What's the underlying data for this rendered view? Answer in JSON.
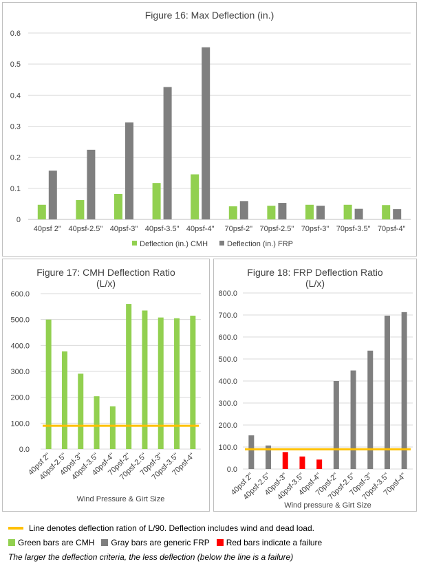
{
  "chart_data": [
    {
      "type": "bar",
      "title": "Figure 16: Max Deflection (in.)",
      "categories": [
        "40psf 2\"",
        "40psf-2.5\"",
        "40psf-3\"",
        "40psf-3.5\"",
        "40psf-4\"",
        "70psf-2\"",
        "70psf-2.5\"",
        "70psf-3\"",
        "70psf-3.5\"",
        "70psf-4\""
      ],
      "series": [
        {
          "name": "Deflection (in.) CMH",
          "color": "#92d050",
          "values": [
            0.047,
            0.062,
            0.082,
            0.117,
            0.145,
            0.042,
            0.044,
            0.047,
            0.047,
            0.046
          ]
        },
        {
          "name": "Deflection (in.) FRP",
          "color": "#7f7f7f",
          "values": [
            0.157,
            0.224,
            0.312,
            0.426,
            0.554,
            0.059,
            0.053,
            0.044,
            0.034,
            0.033
          ]
        }
      ],
      "ylim": [
        0,
        0.6
      ],
      "yticks": [
        "0",
        "0.1",
        "0.2",
        "0.3",
        "0.4",
        "0.5",
        "0.6"
      ],
      "grid": true,
      "legend": "bottom"
    },
    {
      "type": "bar",
      "title": "Figure 17: CMH Deflection Ratio",
      "subtitle": "(L/x)",
      "xlabel": "Wind Pressure & Girt Size",
      "categories": [
        "40psf 2\"",
        "40psf-2.5\"",
        "40psf-3\"",
        "40psf-3.5\"",
        "40psf-4\"",
        "70psf-2\"",
        "70psf-2.5\"",
        "70psf-3\"",
        "70psf-3.5\"",
        "70psf-4\""
      ],
      "values": [
        500,
        377,
        291,
        204,
        165,
        560,
        535,
        508,
        505,
        515
      ],
      "bar_colors": [
        "#92d050",
        "#92d050",
        "#92d050",
        "#92d050",
        "#92d050",
        "#92d050",
        "#92d050",
        "#92d050",
        "#92d050",
        "#92d050"
      ],
      "threshold": 90,
      "threshold_color": "#ffc000",
      "ylim": [
        0,
        600
      ],
      "yticks": [
        "0.0",
        "100.0",
        "200.0",
        "300.0",
        "400.0",
        "500.0",
        "600.0"
      ],
      "grid": true
    },
    {
      "type": "bar",
      "title": "Figure 18: FRP Deflection Ratio",
      "subtitle": "(L/x)",
      "xlabel": "Wind pressure & Girt Size",
      "categories": [
        "40psf 2\"",
        "40psf-2.5\"",
        "40psf-3\"",
        "40psf-3.5\"",
        "40psf-4\"",
        "70psf-2\"",
        "70psf-2.5\"",
        "70psf-3\"",
        "70psf-3.5\"",
        "70psf-4\""
      ],
      "values": [
        153,
        107,
        77,
        57,
        43,
        400,
        448,
        538,
        697,
        713
      ],
      "bar_colors": [
        "#7f7f7f",
        "#7f7f7f",
        "#ff0000",
        "#ff0000",
        "#ff0000",
        "#7f7f7f",
        "#7f7f7f",
        "#7f7f7f",
        "#7f7f7f",
        "#7f7f7f"
      ],
      "threshold": 90,
      "threshold_color": "#ffc000",
      "ylim": [
        0,
        800
      ],
      "yticks": [
        "0.0",
        "100.0",
        "200.0",
        "300.0",
        "400.0",
        "500.0",
        "600.0",
        "700.0",
        "800.0"
      ],
      "grid": true
    }
  ],
  "legend": {
    "line_text": "Line denotes deflection ration of L/90. Deflection includes wind and dead load.",
    "line_color": "#ffc000",
    "items": [
      {
        "text": "Green bars are CMH",
        "color": "#92d050"
      },
      {
        "text": "Gray bars are generic FRP",
        "color": "#7f7f7f"
      },
      {
        "text": "Red bars indicate a failure",
        "color": "#ff0000"
      }
    ]
  },
  "note": "The larger the deflection criteria, the less deflection (below the line is a failure)"
}
